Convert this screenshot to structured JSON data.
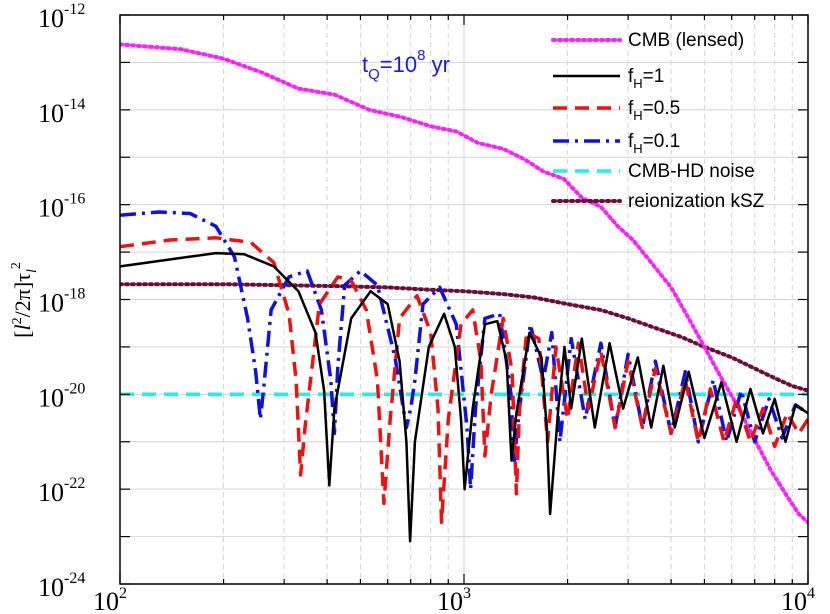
{
  "chart_data": {
    "type": "line",
    "title": "",
    "xlabel": "",
    "ylabel": "[l^2/2π]τ_l^2",
    "xscale": "log",
    "yscale": "log",
    "xlim": [
      100,
      10000
    ],
    "ylim": [
      1e-24,
      1e-12
    ],
    "grid": true,
    "legend_position": "top-right",
    "annotation": {
      "base": "t",
      "sub": "Q",
      "eq": "=10",
      "sup": "8",
      "tail": " yr",
      "color": "#1a1ae6"
    },
    "x_ticks": [
      {
        "base": "10",
        "exp": "2"
      },
      {
        "base": "10",
        "exp": "3"
      },
      {
        "base": "10",
        "exp": "4"
      }
    ],
    "y_ticks": [
      {
        "base": "10",
        "exp": "-12"
      },
      {
        "base": "10",
        "exp": "-14"
      },
      {
        "base": "10",
        "exp": "-16"
      },
      {
        "base": "10",
        "exp": "-18"
      },
      {
        "base": "10",
        "exp": "-20"
      },
      {
        "base": "10",
        "exp": "-22"
      },
      {
        "base": "10",
        "exp": "-24"
      }
    ],
    "ylabel_parts": {
      "open": "[",
      "l": "l",
      "lsup": "2",
      "mid": "/2π]τ",
      "tsub": "l",
      "tsup": "2"
    },
    "series": [
      {
        "name": "CMB (lensed)",
        "label_base": "CMB (lensed)",
        "label_sub": "",
        "label_tail": "",
        "color": "#ff22ff",
        "style": "dotted",
        "x": [
          100,
          150,
          200,
          260,
          330,
          420,
          530,
          660,
          800,
          950,
          1100,
          1300,
          1500,
          1700,
          1950,
          2200,
          2500,
          2800,
          3100,
          3500,
          4000,
          4500,
          5000,
          5600,
          6300,
          7000,
          7800,
          8600,
          9400,
          10000
        ],
        "y": [
          2.4e-13,
          1.9e-13,
          1.2e-13,
          6e-14,
          2.8e-14,
          2.1e-14,
          1e-14,
          7e-15,
          4.5e-15,
          3.5e-15,
          2e-15,
          1.5e-15,
          9e-16,
          5e-16,
          3.5e-16,
          1.4e-16,
          9e-17,
          3.5e-17,
          1.8e-17,
          6e-18,
          1.8e-18,
          4e-19,
          1e-19,
          2.2e-20,
          5e-21,
          1.1e-21,
          2.5e-22,
          8e-23,
          3e-23,
          2e-23
        ]
      },
      {
        "name": "f_H=1",
        "label_base": "f",
        "label_sub": "H",
        "label_tail": "=1",
        "color": "#000000",
        "style": "solid",
        "x": [
          100,
          140,
          190,
          230,
          280,
          330,
          370,
          392,
          406,
          420,
          470,
          535,
          600,
          650,
          680,
          697,
          720,
          790,
          875,
          940,
          980,
          1004,
          1060,
          1150,
          1250,
          1330,
          1374,
          1420,
          1550,
          1680,
          1740,
          1780,
          1880,
          1960,
          2050,
          2200,
          2400,
          2650,
          2900,
          3200,
          3500,
          3800,
          4100,
          4500,
          5000,
          5600,
          6200,
          6800,
          7400,
          8000,
          8600,
          9200,
          10000
        ],
        "y": [
          5e-18,
          7e-18,
          9.5e-18,
          9e-18,
          5e-18,
          1.5e-18,
          2e-19,
          1.2e-20,
          1.2e-22,
          5e-21,
          4e-19,
          1.5e-18,
          8e-19,
          5e-20,
          1e-21,
          8e-24,
          1e-21,
          1e-19,
          5e-19,
          1e-19,
          3e-21,
          1e-22,
          5e-21,
          3e-19,
          3.5e-19,
          5e-20,
          4e-22,
          4e-21,
          2e-19,
          6e-20,
          2e-21,
          3e-23,
          5e-21,
          1e-19,
          5e-21,
          1.5e-19,
          2e-21,
          1.2e-19,
          5e-21,
          6e-20,
          2e-21,
          4e-20,
          2e-21,
          3e-20,
          1.2e-21,
          1.8e-20,
          1e-21,
          1.3e-20,
          1.5e-21,
          8e-21,
          1e-21,
          6e-21,
          4e-21
        ]
      },
      {
        "name": "f_H=0.5",
        "label_base": "f",
        "label_sub": "H",
        "label_tail": "=0.5",
        "color": "#ee1111",
        "style": "dashed",
        "x": [
          100,
          140,
          190,
          240,
          280,
          310,
          325,
          335,
          345,
          380,
          430,
          470,
          520,
          560,
          585,
          610,
          650,
          730,
          800,
          840,
          860,
          900,
          980,
          1060,
          1120,
          1150,
          1200,
          1300,
          1380,
          1420,
          1450,
          1520,
          1650,
          1750,
          1850,
          2000,
          2150,
          2300,
          2500,
          2750,
          3000,
          3300,
          3600,
          4000,
          4400,
          4800,
          5200,
          5700,
          6200,
          6800,
          7400,
          8000,
          8700,
          9400,
          10000
        ],
        "y": [
          1.3e-17,
          1.8e-17,
          2e-17,
          1.6e-17,
          6e-18,
          5e-19,
          2e-20,
          2e-22,
          2e-21,
          8e-19,
          3e-18,
          2.5e-18,
          6e-19,
          2e-20,
          5e-23,
          3e-21,
          4e-19,
          1.2e-18,
          2e-19,
          5e-21,
          2e-23,
          3e-21,
          3e-19,
          6e-19,
          5e-20,
          5e-22,
          1e-20,
          4e-19,
          3e-20,
          8e-23,
          5e-21,
          2e-19,
          1.5e-19,
          1e-21,
          1e-19,
          3e-21,
          1.2e-19,
          5e-21,
          8e-20,
          2e-21,
          5e-20,
          2e-21,
          3.5e-20,
          1.5e-21,
          2e-20,
          1e-21,
          1.3e-20,
          1e-21,
          8e-21,
          1e-21,
          5e-21,
          8e-22,
          4e-21,
          1.5e-21,
          3e-21
        ]
      },
      {
        "name": "f_H=0.1",
        "label_base": "f",
        "label_sub": "H",
        "label_tail": "=0.1",
        "color": "#1111dd",
        "style": "dashdot",
        "x": [
          100,
          130,
          160,
          190,
          215,
          235,
          248,
          256,
          262,
          275,
          310,
          350,
          385,
          410,
          420,
          430,
          450,
          500,
          560,
          630,
          680,
          700,
          720,
          760,
          850,
          950,
          1020,
          1045,
          1080,
          1150,
          1270,
          1370,
          1400,
          1450,
          1560,
          1700,
          1800,
          1900,
          2050,
          2250,
          2500,
          2750,
          3000,
          3300,
          3600,
          4000,
          4400,
          4800,
          5300,
          5800,
          6400,
          7000,
          7700,
          8400,
          9200,
          10000
        ],
        "y": [
          6e-17,
          7e-17,
          6.5e-17,
          3.5e-17,
          8e-18,
          4e-19,
          3e-20,
          3e-21,
          1.5e-20,
          6e-19,
          3e-18,
          4e-18,
          6e-19,
          2e-20,
          1.5e-21,
          4e-20,
          2e-18,
          4e-18,
          2e-18,
          6e-20,
          2e-21,
          5e-21,
          2e-20,
          8e-19,
          1.8e-18,
          3e-19,
          2e-21,
          1e-22,
          5e-21,
          4e-19,
          5e-19,
          1e-20,
          4e-22,
          5e-21,
          3e-19,
          2e-20,
          2e-19,
          1e-21,
          1.5e-19,
          3e-21,
          1.2e-19,
          2e-21,
          7e-20,
          2e-21,
          5e-20,
          1.5e-21,
          3e-20,
          1e-21,
          2e-20,
          1e-21,
          1.2e-20,
          1e-21,
          8e-21,
          1.2e-21,
          6e-21,
          4e-21
        ]
      },
      {
        "name": "CMB-HD noise",
        "label_base": "CMB-HD noise",
        "label_sub": "",
        "label_tail": "",
        "color": "#22eeee",
        "style": "dashed",
        "x": [
          100,
          10000
        ],
        "y": [
          1e-20,
          1e-20
        ]
      },
      {
        "name": "reionization kSZ",
        "label_base": "reionization kSZ",
        "label_sub": "",
        "label_tail": "",
        "color": "#6a0d3a",
        "style": "dotted",
        "x": [
          100,
          200,
          300,
          450,
          600,
          800,
          1000,
          1300,
          1600,
          2000,
          2500,
          3000,
          3600,
          4300,
          5000,
          6000,
          7000,
          8000,
          9000,
          10000
        ],
        "y": [
          2.1e-18,
          2.1e-18,
          2e-18,
          1.9e-18,
          1.8e-18,
          1.6e-18,
          1.5e-18,
          1.3e-18,
          1.1e-18,
          8e-19,
          6e-19,
          4e-19,
          2.5e-19,
          1.6e-19,
          1e-19,
          6e-20,
          3.5e-20,
          2.2e-20,
          1.5e-20,
          1.2e-20
        ]
      }
    ]
  }
}
